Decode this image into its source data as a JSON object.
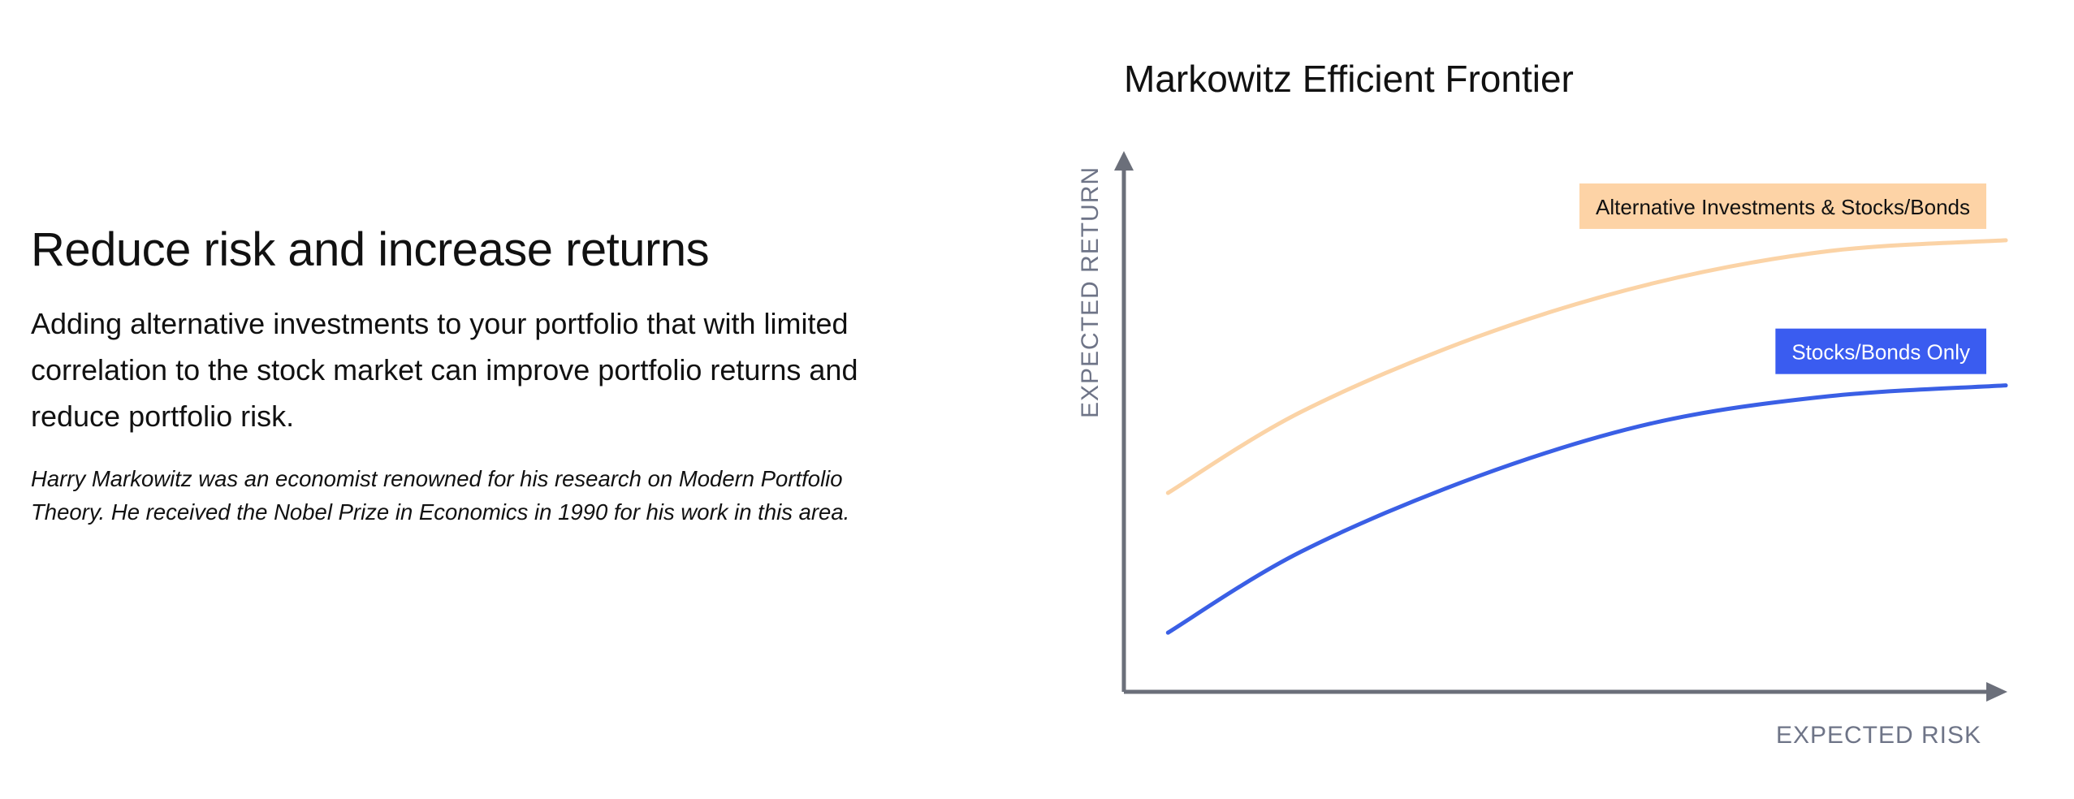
{
  "text": {
    "headline": "Reduce risk and increase returns",
    "lead": "Adding alternative investments to your portfolio that with limited correlation to the stock market can improve portfolio returns and reduce portfolio risk.",
    "note": "Harry Markowitz was an economist renowned for his research on Modern Portfolio Theory. He received the Nobel Prize in Economics in 1990 for his work in this area."
  },
  "chart_data": {
    "type": "line",
    "title": "Markowitz Efficient Frontier",
    "xlabel": "EXPECTED RISK",
    "ylabel": "EXPECTED RETURN",
    "grid": false,
    "x": [
      0.05,
      0.2,
      0.4,
      0.6,
      0.8,
      1.0
    ],
    "xlim": [
      0,
      1.0
    ],
    "ylim": [
      0,
      1.0
    ],
    "series": [
      {
        "name": "Alternative Investments & Stocks/Bonds",
        "color": "#FBD3A6",
        "label_bg": "#FDD3A6",
        "label_color": "#111111",
        "values": [
          0.37,
          0.52,
          0.66,
          0.76,
          0.82,
          0.84
        ]
      },
      {
        "name": "Stocks/Bonds Only",
        "color": "#3A5FE5",
        "label_bg": "#3A5CF0",
        "label_color": "#FFFFFF",
        "values": [
          0.11,
          0.26,
          0.4,
          0.5,
          0.55,
          0.57
        ]
      }
    ],
    "axis_color": "#6B6F7A",
    "axis_label_color": "#6E7487"
  }
}
